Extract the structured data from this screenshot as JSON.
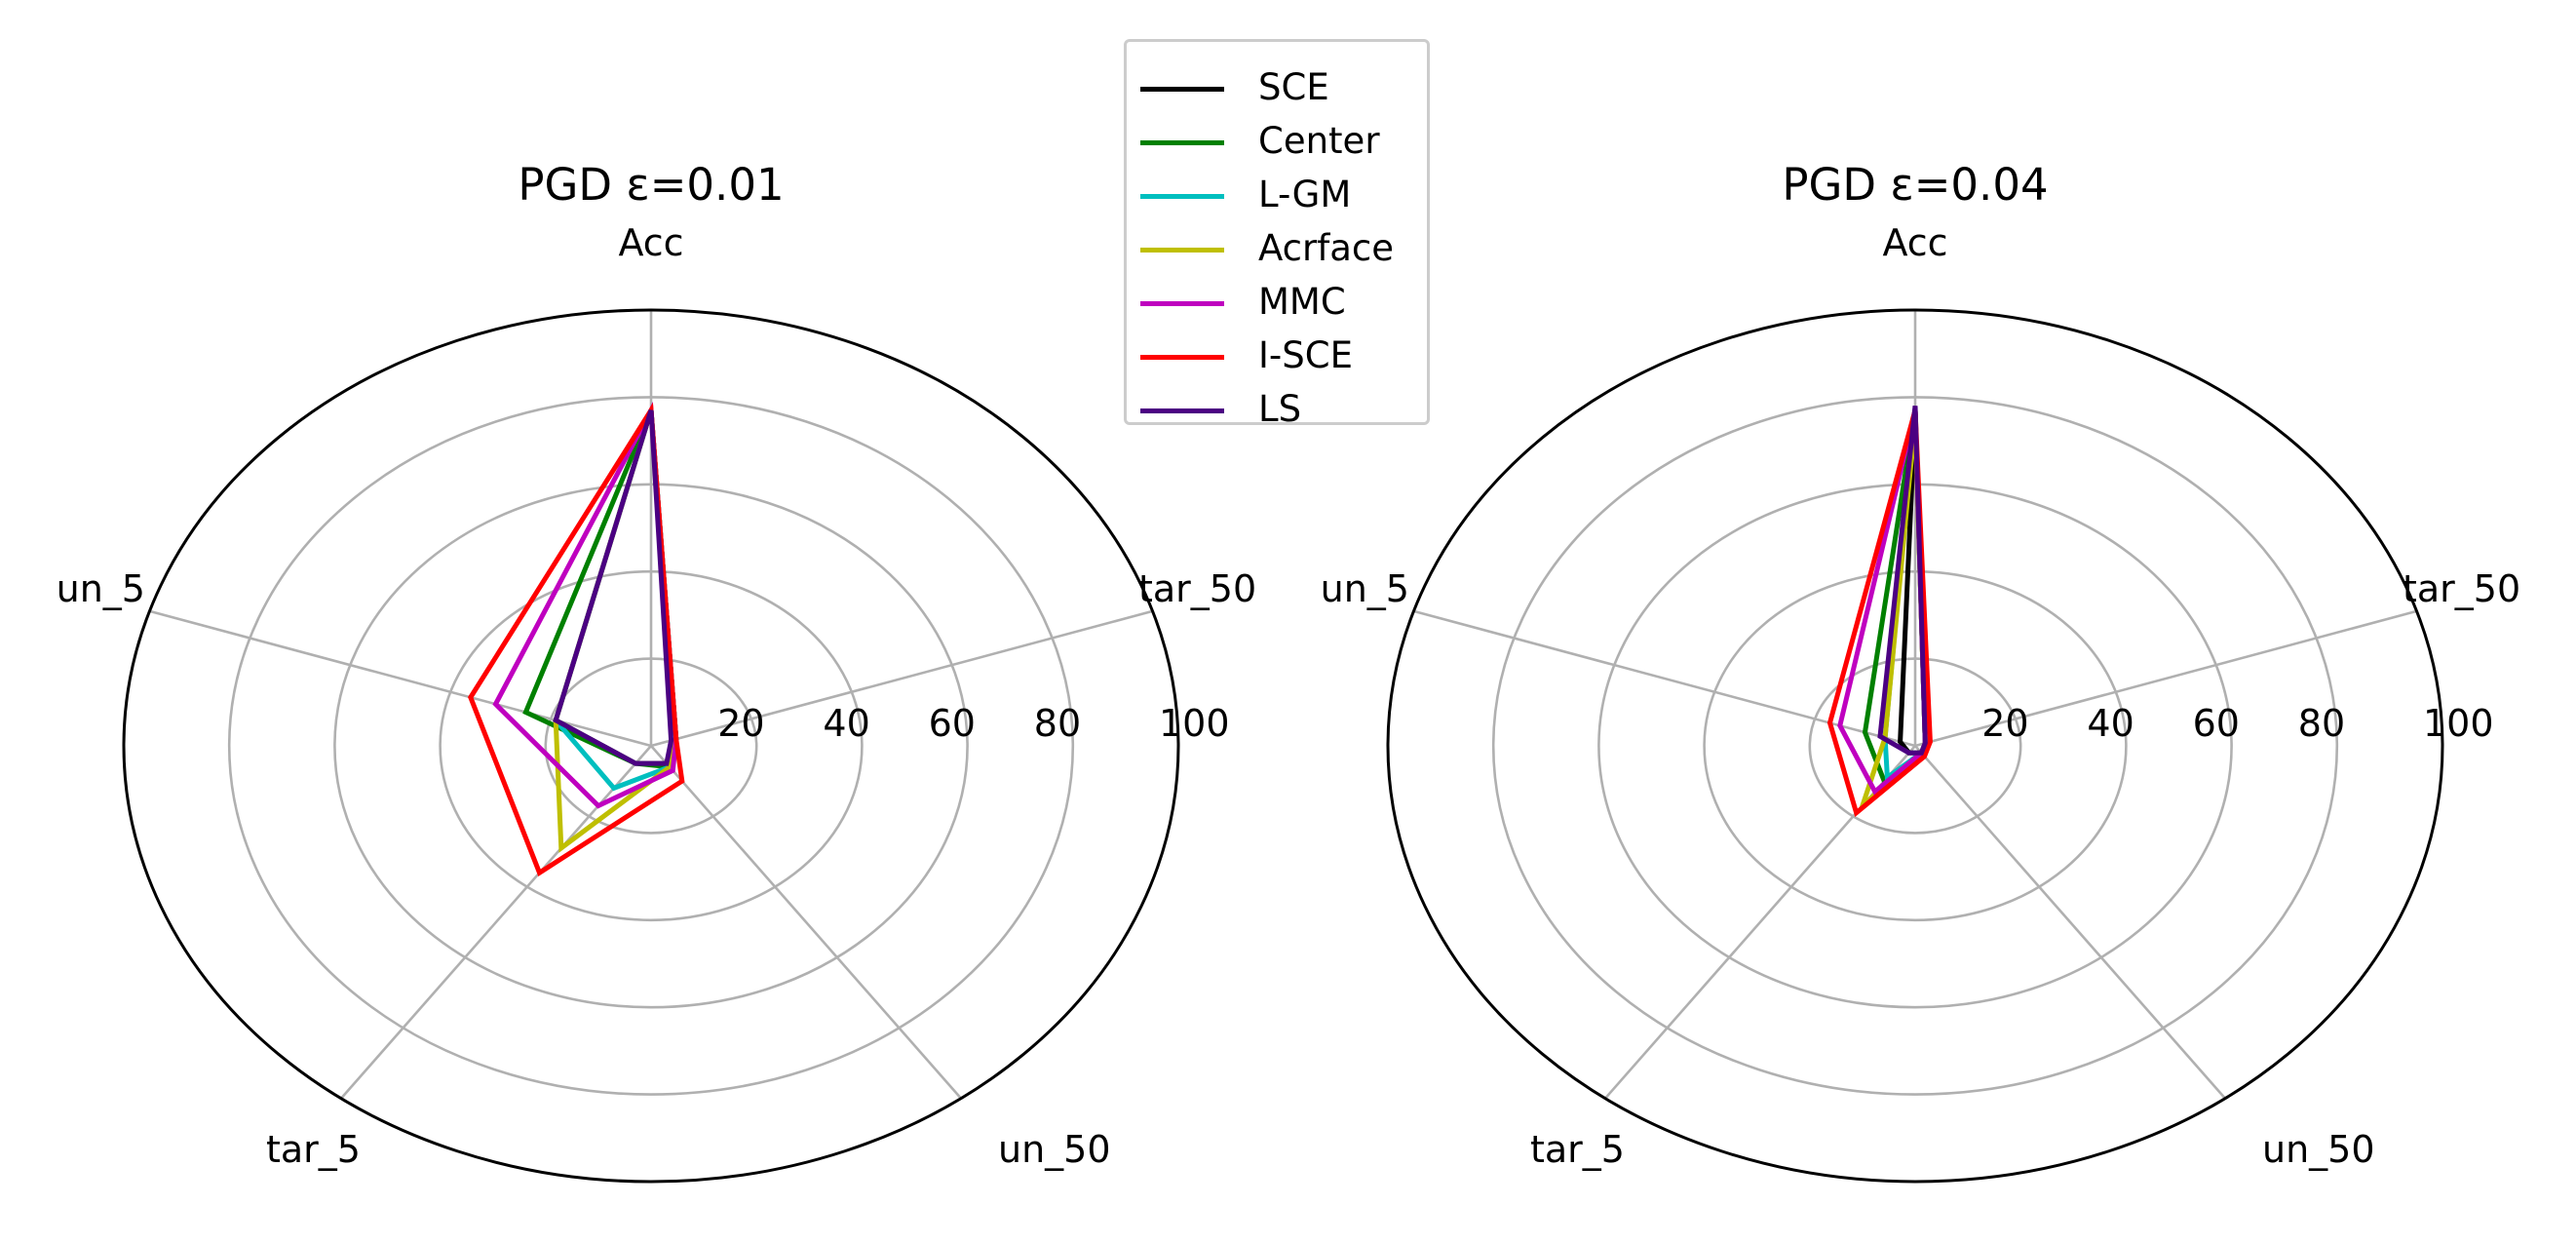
{
  "chart_data": [
    {
      "type": "radar",
      "title": "PGD ε=0.01",
      "axes": [
        "Acc",
        "tar_50",
        "un_50",
        "tar_5",
        "un_5"
      ],
      "radial_ticks": [
        "20",
        "40",
        "60",
        "80",
        "100"
      ],
      "rlim": [
        0,
        100
      ],
      "series": [
        {
          "name": "SCE",
          "color": "#000000",
          "values": [
            77,
            5,
            5,
            5,
            19
          ]
        },
        {
          "name": "Center",
          "color": "#008000",
          "values": [
            77,
            5,
            6,
            5,
            25
          ]
        },
        {
          "name": "L-GM",
          "color": "#00bfbf",
          "values": [
            77,
            5,
            6,
            12,
            19
          ]
        },
        {
          "name": "Acrface",
          "color": "#bfbf00",
          "values": [
            77,
            5,
            6,
            29,
            19
          ]
        },
        {
          "name": "MMC",
          "color": "#bf00bf",
          "values": [
            77,
            5,
            7,
            17,
            31
          ]
        },
        {
          "name": "I-SCE",
          "color": "#ff0000",
          "values": [
            77,
            5,
            10,
            36,
            36
          ]
        },
        {
          "name": "LS",
          "color": "#4b0082",
          "values": [
            77,
            4,
            5,
            5,
            19
          ]
        }
      ]
    },
    {
      "type": "radar",
      "title": "PGD ε=0.04",
      "axes": [
        "Acc",
        "tar_50",
        "un_50",
        "tar_5",
        "un_5"
      ],
      "radial_ticks": [
        "20",
        "40",
        "60",
        "80",
        "100"
      ],
      "rlim": [
        0,
        100
      ],
      "series": [
        {
          "name": "SCE",
          "color": "#000000",
          "values": [
            77,
            2,
            2,
            2,
            3
          ]
        },
        {
          "name": "Center",
          "color": "#008000",
          "values": [
            77,
            2,
            2,
            10,
            10
          ]
        },
        {
          "name": "L-GM",
          "color": "#00bfbf",
          "values": [
            77,
            2,
            2,
            9,
            6
          ]
        },
        {
          "name": "Acrface",
          "color": "#bfbf00",
          "values": [
            75,
            2,
            2,
            17,
            6
          ]
        },
        {
          "name": "MMC",
          "color": "#bf00bf",
          "values": [
            77,
            2,
            2,
            13,
            15
          ]
        },
        {
          "name": "I-SCE",
          "color": "#ff0000",
          "values": [
            77,
            3,
            3,
            19,
            17
          ]
        },
        {
          "name": "LS",
          "color": "#4b0082",
          "values": [
            78,
            2,
            2,
            2,
            7
          ]
        }
      ]
    }
  ],
  "legend": {
    "items": [
      {
        "label": "SCE",
        "color": "#000000"
      },
      {
        "label": "Center",
        "color": "#008000"
      },
      {
        "label": "L-GM",
        "color": "#00bfbf"
      },
      {
        "label": "Acrface",
        "color": "#bfbf00"
      },
      {
        "label": "MMC",
        "color": "#bf00bf"
      },
      {
        "label": "I-SCE",
        "color": "#ff0000"
      },
      {
        "label": "LS",
        "color": "#4b0082"
      }
    ]
  }
}
